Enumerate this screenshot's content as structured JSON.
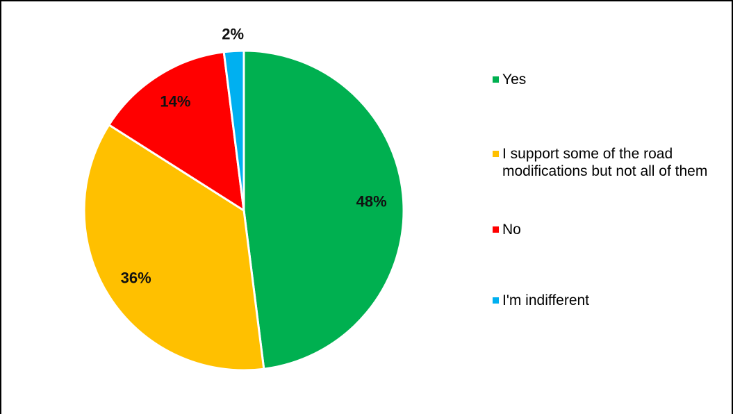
{
  "chart_data": {
    "type": "pie",
    "title": "",
    "slices": [
      {
        "label": "Yes",
        "value": 48,
        "display": "48%",
        "color": "#00b050"
      },
      {
        "label": "I support some of the road modifications but not all of them",
        "value": 36,
        "display": "36%",
        "color": "#ffc000"
      },
      {
        "label": "No",
        "value": 14,
        "display": "14%",
        "color": "#ff0000"
      },
      {
        "label": "I'm indifferent",
        "value": 2,
        "display": "2%",
        "color": "#00b0f0"
      }
    ],
    "legend_position": "right"
  }
}
